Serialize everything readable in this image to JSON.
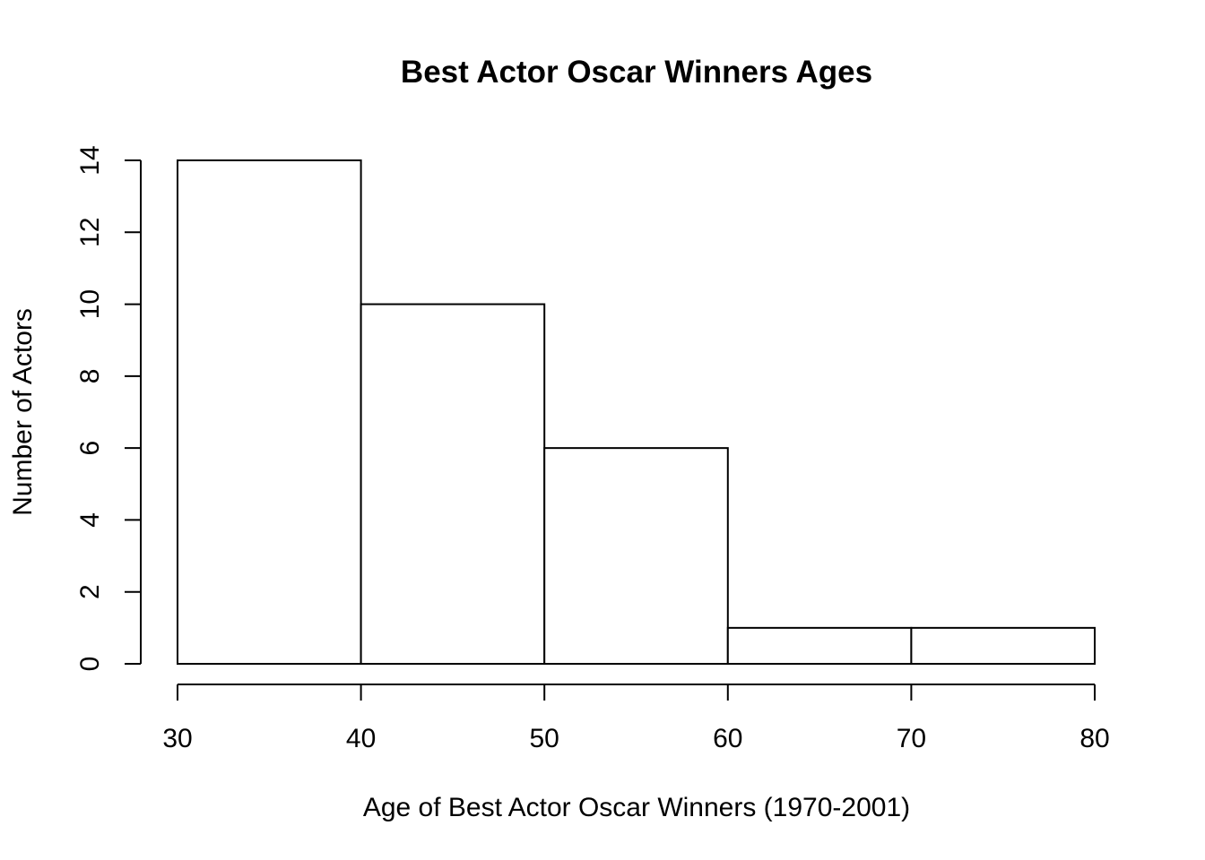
{
  "chart_data": {
    "type": "bar",
    "title": "Best Actor Oscar Winners Ages",
    "xlabel": "Age of Best Actor Oscar Winners (1970-2001)",
    "ylabel": "Number of Actors",
    "bins": [
      {
        "from": 30,
        "to": 40,
        "count": 14
      },
      {
        "from": 40,
        "to": 50,
        "count": 10
      },
      {
        "from": 50,
        "to": 60,
        "count": 6
      },
      {
        "from": 60,
        "to": 70,
        "count": 1
      },
      {
        "from": 70,
        "to": 80,
        "count": 1
      }
    ],
    "xlim": [
      30,
      80
    ],
    "ylim": [
      0,
      14
    ],
    "x_ticks": [
      30,
      40,
      50,
      60,
      70,
      80
    ],
    "y_ticks": [
      0,
      2,
      4,
      6,
      8,
      10,
      12,
      14
    ],
    "grid": false,
    "legend": "none",
    "bar_fill": "#ffffff",
    "bar_stroke": "#000000"
  }
}
